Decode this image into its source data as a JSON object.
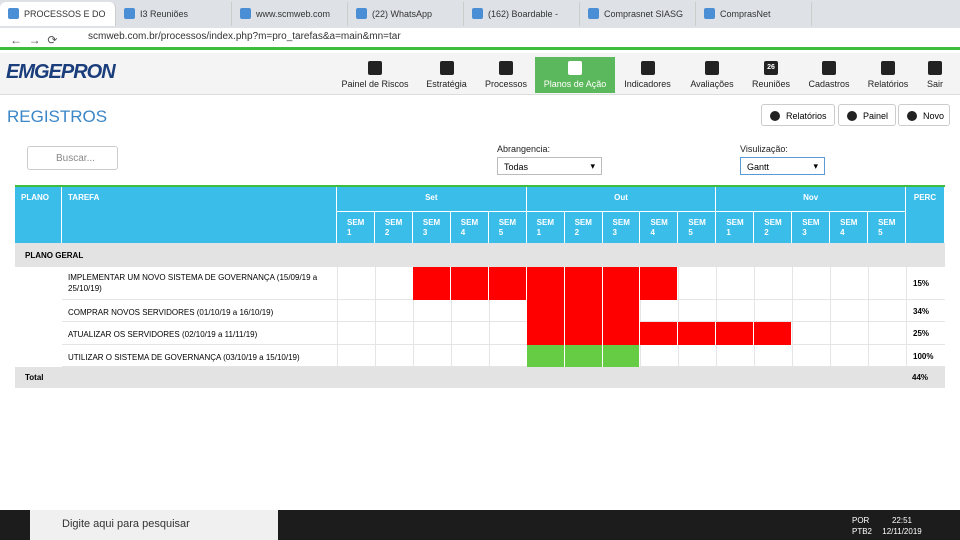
{
  "browser": {
    "tabs": [
      "PROCESSOS E DO",
      "I3 Reuniões",
      "www.scmweb.com",
      "(22) WhatsApp",
      "(162) Boardable -",
      "Comprasnet SIASG",
      "ComprasNet"
    ],
    "active_tab": 0,
    "url": "scmweb.com.br/processos/index.php?m=pro_tarefas&a=main&mn=tar"
  },
  "header": {
    "logo": "EMGEPRON",
    "nav": [
      "Painel de Riscos",
      "Estratégia",
      "Processos",
      "Planos de Ação",
      "Indicadores",
      "Avaliações",
      "Reuniões",
      "Cadastros",
      "Relatórios",
      "Sair"
    ],
    "active_nav": 3,
    "calendar_icon": "26"
  },
  "page": {
    "title": "REGISTROS",
    "buttons": [
      "Relatórios",
      "Painel",
      "Novo"
    ],
    "search_placeholder": "Buscar...",
    "filters": [
      {
        "label": "Abrangencia:",
        "value": "Todas"
      },
      {
        "label": "Visulização:",
        "value": "Gantt"
      }
    ]
  },
  "table": {
    "columns": {
      "plan": "PLANO",
      "task": "TAREFA",
      "perc": "PERC"
    },
    "months": [
      "Set",
      "Out",
      "Nov"
    ],
    "weeks": [
      "SEM 1",
      "SEM 2",
      "SEM 3",
      "SEM 4",
      "SEM 5"
    ],
    "group": "PLANO GERAL",
    "rows": [
      {
        "task": "IMPLEMENTAR UM NOVO SISTEMA DE GOVERNANÇA (15/09/19 a 25/10/19)",
        "perc": "15%",
        "color": "#ff0000",
        "active_weeks": [
          2,
          3,
          4,
          5,
          6,
          7,
          8
        ]
      },
      {
        "task": "COMPRAR NOVOS SERVIDORES (01/10/19 a 16/10/19)",
        "perc": "34%",
        "color": "#ff0000",
        "active_weeks": [
          5,
          6,
          7
        ]
      },
      {
        "task": "ATUALIZAR OS SERVIDORES (02/10/19 a 11/11/19)",
        "perc": "25%",
        "color": "#ff0000",
        "active_weeks": [
          5,
          6,
          7,
          8,
          9,
          10,
          11
        ]
      },
      {
        "task": "UTILIZAR O SISTEMA DE GOVERNANÇA (03/10/19 a 15/10/19)",
        "perc": "100%",
        "color": "#66cc44",
        "active_weeks": [
          5,
          6,
          7
        ]
      }
    ],
    "total": {
      "label": "Total",
      "perc": "44%"
    }
  },
  "taskbar": {
    "search": "Digite aqui para pesquisar",
    "lang": "POR",
    "layout": "PTB2",
    "time": "22:51",
    "date": "12/11/2019"
  }
}
